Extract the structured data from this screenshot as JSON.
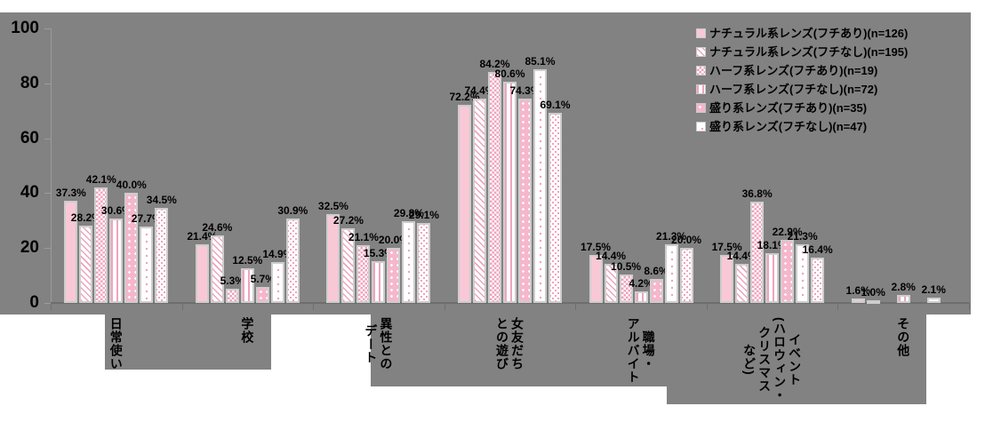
{
  "chart_data": {
    "type": "bar",
    "title": "",
    "xlabel": "",
    "ylabel": "",
    "ylim": [
      0,
      100
    ],
    "yticks": [
      0,
      20,
      40,
      60,
      80,
      100
    ],
    "grid": false,
    "legend_position": "top-right",
    "value_suffix": "%",
    "categories": [
      {
        "label": "日常使い",
        "columns": [
          "日常使い"
        ]
      },
      {
        "label": "学校",
        "columns": [
          "学校"
        ]
      },
      {
        "label": "異性とのデート",
        "columns": [
          "異性との",
          "デート"
        ]
      },
      {
        "label": "女友だちとの遊び",
        "columns": [
          "女友だち",
          "との遊び"
        ]
      },
      {
        "label": "職場・アルバイト",
        "columns": [
          "職場・",
          "アルバイト"
        ]
      },
      {
        "label": "イベント(ハロウィン・クリスマスなど)",
        "columns": [
          "イベント",
          "(ハロウィン・",
          "クリスマス",
          "など)"
        ]
      },
      {
        "label": "その他",
        "columns": [
          "その他"
        ]
      }
    ],
    "series": [
      {
        "name": "ナチュラル系レンズ(フチあり)(n=126)",
        "pattern": "solid-pink",
        "in_legend": true,
        "values": [
          37.3,
          21.4,
          32.5,
          72.2,
          17.5,
          17.5,
          1.6
        ]
      },
      {
        "name": "ナチュラル系レンズ(フチなし)(n=195)",
        "pattern": "diagonal-stripes",
        "in_legend": true,
        "values": [
          28.2,
          24.6,
          27.2,
          74.4,
          14.4,
          14.4,
          1.0
        ]
      },
      {
        "name": "ハーフ系レンズ(フチあり)(n=19)",
        "pattern": "checker",
        "in_legend": true,
        "values": [
          42.1,
          5.3,
          21.1,
          84.2,
          10.5,
          36.8,
          0
        ]
      },
      {
        "name": "ハーフ系レンズ(フチなし)(n=72)",
        "pattern": "vertical-stripes",
        "in_legend": true,
        "values": [
          30.6,
          12.5,
          15.3,
          80.6,
          4.2,
          18.1,
          2.8
        ]
      },
      {
        "name": "盛り系レンズ(フチあり)(n=35)",
        "pattern": "pink-white-dots",
        "in_legend": true,
        "values": [
          40.0,
          5.7,
          20.0,
          74.3,
          8.6,
          22.9,
          0
        ]
      },
      {
        "name": "盛り系レンズ(フチなし)(n=47)",
        "pattern": "white-pink-dots",
        "in_legend": true,
        "values": [
          27.7,
          14.9,
          29.8,
          85.1,
          21.3,
          21.3,
          2.1
        ]
      },
      {
        "name": "",
        "pattern": "white-pink-dots-dense",
        "in_legend": false,
        "values": [
          34.5,
          30.9,
          29.1,
          69.1,
          20.0,
          16.4,
          0
        ]
      }
    ]
  },
  "colors": {
    "plot_background": "#828282",
    "page_background": "#ffffff",
    "bar_border": "#cdcdcd",
    "pink_solid": "#f9c8d7",
    "pink_pattern": "#f0a3be",
    "text": "#000000"
  }
}
